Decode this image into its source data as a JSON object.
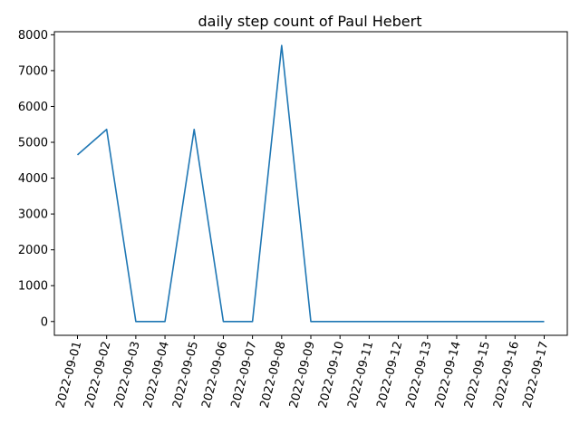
{
  "chart_data": {
    "type": "line",
    "title": "daily step count of Paul Hebert",
    "xlabel": "",
    "ylabel": "",
    "x": [
      "2022-09-01",
      "2022-09-02",
      "2022-09-03",
      "2022-09-04",
      "2022-09-05",
      "2022-09-06",
      "2022-09-07",
      "2022-09-08",
      "2022-09-09",
      "2022-09-10",
      "2022-09-11",
      "2022-09-12",
      "2022-09-13",
      "2022-09-14",
      "2022-09-15",
      "2022-09-16",
      "2022-09-17"
    ],
    "series": [
      {
        "values": [
          4650,
          5360,
          0,
          0,
          5360,
          0,
          0,
          7700,
          0,
          0,
          0,
          0,
          0,
          0,
          0,
          0,
          0
        ],
        "color": "#1f77b4"
      }
    ],
    "yticks": [
      0,
      1000,
      2000,
      3000,
      4000,
      5000,
      6000,
      7000,
      8000
    ],
    "ylim": [
      -385,
      8085
    ],
    "grid": false,
    "legend": "none"
  }
}
